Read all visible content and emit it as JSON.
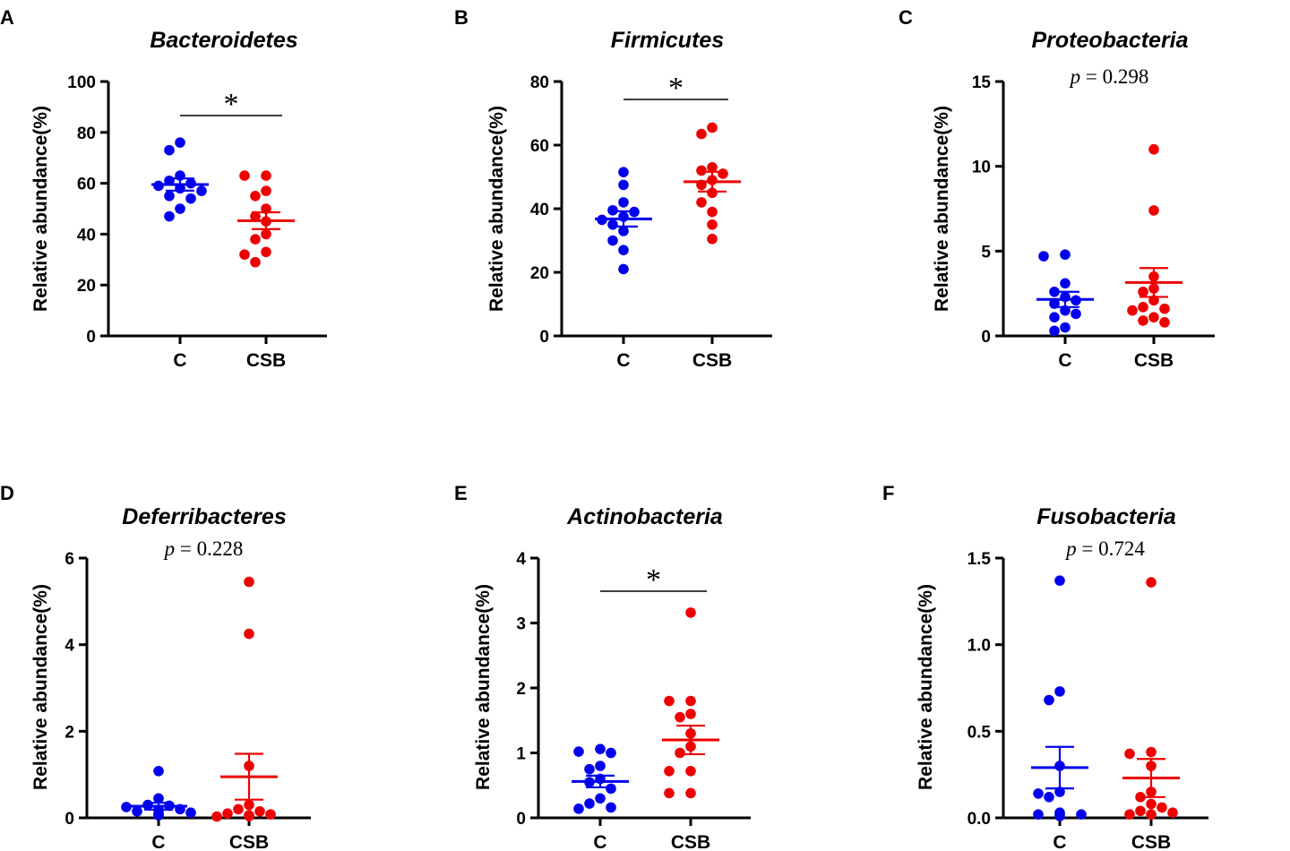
{
  "chart_data": [
    {
      "type": "scatter",
      "panel_label": "A",
      "title": "Bacteroidetes",
      "ylabel": "Relative abundance(%)",
      "categories": [
        "C",
        "CSB"
      ],
      "ylim": [
        0,
        100
      ],
      "yticks": [
        0,
        20,
        40,
        60,
        80,
        100
      ],
      "ytick_labels": [
        "0",
        "20",
        "40",
        "60",
        "80",
        "100"
      ],
      "significance": "*",
      "p_text": null,
      "series": [
        {
          "name": "C",
          "color": "#0000ee",
          "values": [
            76,
            73,
            63,
            61,
            60,
            59,
            58,
            57,
            55,
            54,
            50,
            47
          ],
          "mean": 59.5,
          "sem": 2.4
        },
        {
          "name": "CSB",
          "color": "#ee0000",
          "values": [
            63,
            63,
            57,
            55,
            50,
            47,
            45,
            40,
            38,
            33,
            32,
            29
          ],
          "mean": 45.3,
          "sem": 3.3
        }
      ]
    },
    {
      "type": "scatter",
      "panel_label": "B",
      "title": "Firmicutes",
      "ylabel": "Relative abundance(%)",
      "categories": [
        "C",
        "CSB"
      ],
      "ylim": [
        0,
        80
      ],
      "yticks": [
        0,
        20,
        40,
        60,
        80
      ],
      "ytick_labels": [
        "0",
        "20",
        "40",
        "60",
        "80"
      ],
      "significance": "*",
      "p_text": null,
      "series": [
        {
          "name": "C",
          "color": "#0000ee",
          "values": [
            51.5,
            47.5,
            42,
            39.5,
            39,
            37.5,
            36.5,
            35,
            33,
            30,
            27,
            21
          ],
          "mean": 36.8,
          "sem": 2.4
        },
        {
          "name": "CSB",
          "color": "#ee0000",
          "values": [
            65.5,
            63.5,
            53,
            52,
            51,
            49,
            47.5,
            45,
            42,
            39,
            35,
            30.5
          ],
          "mean": 48.5,
          "sem": 3.1
        }
      ]
    },
    {
      "type": "scatter",
      "panel_label": "C",
      "title": "Proteobacteria",
      "ylabel": "Relative abundance(%)",
      "categories": [
        "C",
        "CSB"
      ],
      "ylim": [
        0,
        15
      ],
      "yticks": [
        0,
        5,
        10,
        15
      ],
      "ytick_labels": [
        "0",
        "5",
        "10",
        "15"
      ],
      "significance": null,
      "p_text": {
        "italic": "p",
        "rest": " = 0.298"
      },
      "series": [
        {
          "name": "C",
          "color": "#0000ee",
          "values": [
            4.8,
            4.7,
            3.1,
            2.6,
            2.3,
            2.1,
            1.9,
            1.5,
            1.3,
            1.1,
            0.5,
            0.3
          ],
          "mean": 2.15,
          "sem": 0.45
        },
        {
          "name": "CSB",
          "color": "#ee0000",
          "values": [
            11,
            7.4,
            3.5,
            2.8,
            2.6,
            2.1,
            1.7,
            1.6,
            1.5,
            1.1,
            0.9,
            0.8
          ],
          "mean": 3.15,
          "sem": 0.85
        }
      ]
    },
    {
      "type": "scatter",
      "panel_label": "D",
      "title": "Deferribacteres",
      "ylabel": "Relative abundance(%)",
      "categories": [
        "C",
        "CSB"
      ],
      "ylim": [
        0,
        6
      ],
      "yticks": [
        0,
        2,
        4,
        6
      ],
      "ytick_labels": [
        "0",
        "2",
        "4",
        "6"
      ],
      "significance": null,
      "p_text": {
        "italic": "p",
        "rest": " = 0.228"
      },
      "series": [
        {
          "name": "C",
          "color": "#0000ee",
          "values": [
            1.08,
            0.45,
            0.3,
            0.28,
            0.25,
            0.2,
            0.18,
            0.15,
            0.12,
            0.1,
            0.08,
            0.06
          ],
          "mean": 0.27,
          "sem": 0.08
        },
        {
          "name": "CSB",
          "color": "#ee0000",
          "values": [
            5.45,
            4.25,
            1.2,
            0.3,
            0.2,
            0.15,
            0.1,
            0.08,
            0.06,
            0.05,
            0.04,
            0.03
          ],
          "mean": 0.95,
          "sem": 0.53
        }
      ]
    },
    {
      "type": "scatter",
      "panel_label": "E",
      "title": "Actinobacteria",
      "ylabel": "Relative abundance(%)",
      "categories": [
        "C",
        "CSB"
      ],
      "ylim": [
        0,
        4
      ],
      "yticks": [
        0,
        1,
        2,
        3,
        4
      ],
      "ytick_labels": [
        "0",
        "1",
        "2",
        "3",
        "4"
      ],
      "significance": "*",
      "p_text": null,
      "series": [
        {
          "name": "C",
          "color": "#0000ee",
          "values": [
            1.06,
            1.02,
            1.0,
            0.8,
            0.75,
            0.6,
            0.55,
            0.45,
            0.3,
            0.22,
            0.16,
            0.14
          ],
          "mean": 0.56,
          "sem": 0.09
        },
        {
          "name": "CSB",
          "color": "#ee0000",
          "values": [
            3.16,
            1.8,
            1.8,
            1.6,
            1.55,
            1.3,
            1.1,
            1.0,
            0.72,
            0.72,
            0.38,
            0.38
          ],
          "mean": 1.2,
          "sem": 0.22
        }
      ]
    },
    {
      "type": "scatter",
      "panel_label": "F",
      "title": "Fusobacteria",
      "ylabel": "Relative abundance(%)",
      "categories": [
        "C",
        "CSB"
      ],
      "ylim": [
        0,
        1.5
      ],
      "yticks": [
        0,
        0.5,
        1.0,
        1.5
      ],
      "ytick_labels": [
        "0.0",
        "0.5",
        "1.0",
        "1.5"
      ],
      "significance": null,
      "p_text": {
        "italic": "p",
        "rest": " = 0.724"
      },
      "series": [
        {
          "name": "C",
          "color": "#0000ee",
          "values": [
            1.37,
            0.73,
            0.68,
            0.3,
            0.15,
            0.14,
            0.12,
            0.03,
            0.02,
            0.02,
            0.02,
            0.01
          ],
          "mean": 0.29,
          "sem": 0.12
        },
        {
          "name": "CSB",
          "color": "#ee0000",
          "values": [
            1.36,
            0.38,
            0.37,
            0.3,
            0.15,
            0.12,
            0.08,
            0.06,
            0.04,
            0.03,
            0.02,
            0.02
          ],
          "mean": 0.23,
          "sem": 0.11
        }
      ]
    }
  ]
}
